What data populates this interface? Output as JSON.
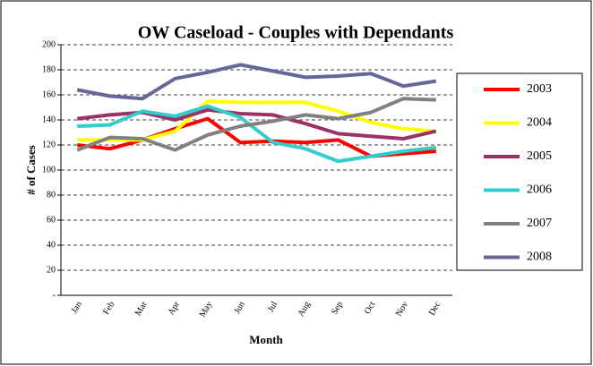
{
  "chart_data": {
    "type": "line",
    "title": "OW Caseload - Couples with Dependants",
    "x_label": "Month",
    "y_label": "# of Cases",
    "categories": [
      "Jan",
      "Feb",
      "Mar",
      "Apr",
      "May",
      "Jun",
      "Jul",
      "Aug",
      "Sep",
      "Oct",
      "Nov",
      "Dec"
    ],
    "series": [
      {
        "name": "2003",
        "color": "#ff0000",
        "values": [
          120,
          117,
          124,
          133,
          141,
          122,
          123,
          122,
          124,
          111,
          113,
          115
        ]
      },
      {
        "name": "2004",
        "color": "#ffff00",
        "values": [
          124,
          124,
          124,
          131,
          155,
          154,
          154,
          154,
          147,
          138,
          133,
          131
        ]
      },
      {
        "name": "2005",
        "color": "#993366",
        "values": [
          141,
          144,
          146,
          140,
          148,
          145,
          144,
          137,
          129,
          127,
          125,
          131
        ]
      },
      {
        "name": "2006",
        "color": "#33cccc",
        "values": [
          135,
          136,
          147,
          143,
          151,
          142,
          122,
          117,
          107,
          111,
          115,
          118
        ]
      },
      {
        "name": "2007",
        "color": "#808080",
        "values": [
          116,
          126,
          125,
          116,
          128,
          135,
          139,
          144,
          141,
          146,
          157,
          156
        ]
      },
      {
        "name": "2008",
        "color": "#666699",
        "values": [
          164,
          159,
          157,
          173,
          178,
          184,
          179,
          174,
          175,
          177,
          167,
          171
        ]
      }
    ],
    "ylim": [
      0,
      200
    ],
    "yticks": [
      {
        "value": 0,
        "label": "-"
      },
      20,
      40,
      60,
      80,
      100,
      120,
      140,
      160,
      180,
      200
    ],
    "grid": true,
    "legend": "right"
  }
}
